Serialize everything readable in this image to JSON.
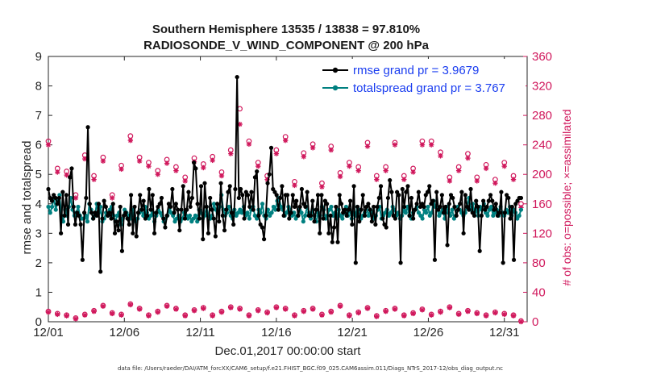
{
  "chart_data": {
    "type": "line",
    "title_line1": "Southern Hemisphere 13535 / 13838 = 97.810%",
    "title_line2": "RADIOSONDE_V_WIND_COMPONENT @ 200 hPa",
    "xlabel": "Dec.01,2017 00:00:00 start",
    "ylabel_left": "rmse and totalspread",
    "ylabel_right": "# of obs: o=possible; ×=assimilated",
    "footnote": "data file: /Users/raeder/DAI/ATM_forcXX/CAM6_setup/f.e21.FHIST_BGC.f09_025.CAM6assim.011/Diags_NTrS_2017-12/obs_diag_output.nc",
    "xlim": [
      0,
      31.5
    ],
    "ylim_left": [
      0,
      9
    ],
    "ylim_right": [
      0,
      360
    ],
    "x_ticks": [
      0,
      5,
      10,
      15,
      20,
      25,
      30
    ],
    "x_tick_labels": [
      "12/01",
      "12/06",
      "12/11",
      "12/16",
      "12/21",
      "12/26",
      "12/31"
    ],
    "y_ticks_left": [
      "0",
      "1",
      "2",
      "3",
      "4",
      "5",
      "6",
      "7",
      "8",
      "9"
    ],
    "y_ticks_right": [
      "0",
      "40",
      "80",
      "120",
      "160",
      "200",
      "240",
      "280",
      "320",
      "360"
    ],
    "colors": {
      "rmse": "#000000",
      "spread": "#008080",
      "obs": "#d0185c",
      "legend_text": "#1a3df0"
    },
    "series": [
      {
        "name": "rmse grand pr = 3.9679",
        "key": "rmse",
        "values": [
          4.5,
          4.2,
          4.1,
          4.3,
          4.2,
          4.0,
          4.2,
          3.0,
          4.4,
          3.6,
          4.3,
          3.3,
          4.9,
          5.2,
          3.9,
          3.3,
          3.7,
          3.6,
          3.3,
          2.1,
          3.7,
          4.2,
          6.6,
          4.0,
          3.7,
          3.5,
          3.7,
          3.6,
          4.0,
          1.7,
          3.5,
          4.1,
          3.9,
          3.6,
          3.7,
          3.5,
          4.0,
          3.0,
          3.4,
          3.1,
          3.9,
          2.4,
          3.6,
          3.7,
          3.5,
          3.3,
          4.3,
          3.0,
          3.9,
          2.9,
          3.7,
          4.3,
          3.8,
          4.1,
          3.5,
          3.6,
          4.5,
          3.8,
          4.3,
          3.0,
          3.7,
          3.9,
          4.0,
          4.2,
          3.5,
          3.2,
          3.6,
          4.0,
          3.9,
          4.5,
          3.7,
          4.0,
          3.8,
          3.1,
          3.8,
          4.6,
          3.5,
          3.8,
          4.4,
          3.9,
          4.2,
          5.4,
          5.2,
          4.0,
          3.5,
          4.6,
          2.8,
          4.7,
          3.9,
          3.0,
          4.2,
          3.8,
          3.5,
          2.9,
          4.0,
          3.4,
          4.7,
          3.6,
          3.1,
          3.8,
          4.4,
          4.6,
          3.7,
          3.3,
          4.5,
          8.3,
          4.2,
          4.5,
          4.3,
          3.5,
          4.4,
          4.3,
          3.9,
          4.4,
          3.8,
          4.9,
          5.1,
          3.6,
          3.3,
          3.2,
          2.8,
          3.6,
          4.7,
          5.0,
          5.9,
          4.5,
          4.4,
          4.3,
          3.8,
          4.2,
          4.6,
          3.6,
          4.3,
          4.3,
          3.5,
          3.7,
          4.3,
          3.9,
          4.1,
          3.6,
          3.9,
          4.5,
          4.0,
          3.9,
          4.4,
          3.6,
          3.6,
          4.1,
          3.4,
          3.8,
          4.3,
          3.0,
          4.3,
          3.5,
          4.1,
          4.0,
          3.0,
          3.6,
          2.7,
          3.2,
          3.9,
          2.7,
          4.3,
          4.0,
          3.7,
          3.8,
          3.6,
          3.8,
          4.1,
          3.3,
          4.6,
          2.0,
          3.9,
          3.4,
          3.8,
          4.3,
          3.6,
          3.9,
          4.0,
          3.8,
          3.4,
          3.9,
          3.3,
          3.9,
          4.2,
          4.6,
          3.5,
          3.3,
          3.2,
          4.2,
          4.8,
          4.4,
          3.6,
          3.5,
          4.4,
          4.3,
          2.0,
          4.5,
          3.9,
          4.4,
          4.6,
          3.6,
          4.2,
          3.5,
          3.8,
          4.0,
          4.4,
          3.9,
          4.0,
          3.9,
          4.3,
          4.4,
          4.6,
          4.0,
          4.1,
          2.1,
          4.4,
          3.8,
          3.9,
          4.3,
          3.7,
          3.9,
          2.6,
          4.0,
          4.3,
          4.2,
          3.9,
          3.6,
          3.8,
          4.0,
          4.4,
          3.0,
          4.3,
          3.9,
          3.8,
          4.5,
          3.7,
          3.6,
          4.1,
          3.9,
          2.4,
          3.6,
          4.1,
          3.8,
          3.9,
          4.1,
          4.3,
          4.1,
          3.8,
          4.0,
          3.6,
          3.7,
          4.4,
          2.0,
          3.7,
          4.3,
          4.2,
          3.5,
          3.9,
          2.1,
          4.0,
          4.1,
          4.2,
          4.2
        ]
      },
      {
        "name": "totalspread grand pr = 3.767",
        "key": "spread",
        "values": [
          3.9,
          3.7,
          3.9,
          4.2,
          3.8,
          4.1,
          4.3,
          3.6,
          3.4,
          3.8,
          3.6,
          3.9,
          4.2,
          3.8,
          3.6,
          3.7,
          3.9,
          3.6,
          3.5,
          3.5,
          3.6,
          3.4,
          4.0,
          3.8,
          3.5,
          3.6,
          4.0,
          3.7,
          3.9,
          3.4,
          3.5,
          3.7,
          3.6,
          3.8,
          3.9,
          3.6,
          3.4,
          3.6,
          3.7,
          3.3,
          3.5,
          3.8,
          3.7,
          3.6,
          3.5,
          3.8,
          3.6,
          3.4,
          3.5,
          3.7,
          3.8,
          3.6,
          3.9,
          3.7,
          3.5,
          3.6,
          3.7,
          3.4,
          3.6,
          3.8,
          3.7,
          3.6,
          3.4,
          3.5,
          3.6,
          3.8,
          3.7,
          3.6,
          3.4,
          3.5,
          3.6,
          3.4,
          3.5,
          3.7,
          3.6,
          3.5,
          3.6,
          3.4,
          3.5,
          3.6,
          3.4,
          3.8,
          3.7,
          3.5,
          3.6,
          3.9,
          3.6,
          3.5,
          3.6,
          4.0,
          3.8,
          3.7,
          3.9,
          4.3,
          3.8,
          3.6,
          3.7,
          3.9,
          3.6,
          3.5,
          3.8,
          3.6,
          3.7,
          3.8,
          3.7,
          3.9,
          3.6,
          3.7,
          3.5,
          3.8,
          3.9,
          3.6,
          3.5,
          3.8,
          3.7,
          4.0,
          3.6,
          3.5,
          3.8,
          3.6,
          3.7,
          3.9,
          3.8,
          4.1,
          4.2,
          3.9,
          3.8,
          3.6,
          3.7,
          3.9,
          3.8,
          3.6,
          3.7,
          3.5,
          3.6,
          3.8,
          3.7,
          3.4,
          3.6,
          3.9,
          3.7,
          3.5,
          3.8,
          3.6,
          3.4,
          3.7,
          3.6,
          3.9,
          3.8,
          3.5,
          3.6,
          3.8,
          3.9,
          3.6,
          3.7,
          3.5,
          3.8,
          3.6,
          3.5,
          3.7,
          3.9,
          3.6,
          3.8,
          3.5,
          3.7,
          3.6,
          3.9,
          3.8,
          3.5,
          3.6,
          3.7,
          3.9,
          3.6,
          3.8,
          3.7,
          3.5,
          3.6,
          3.8,
          3.9,
          3.5,
          3.6,
          3.7,
          3.8,
          3.6,
          3.7,
          3.9,
          3.8,
          3.6,
          3.7,
          3.5,
          3.6,
          3.8,
          3.7,
          3.9,
          3.6,
          3.5,
          3.7,
          3.8,
          3.9,
          3.7,
          3.6,
          3.5,
          3.8,
          3.7,
          3.9,
          3.6,
          3.7,
          4.1,
          3.9,
          3.8,
          3.6,
          3.7,
          3.8,
          3.5,
          3.9,
          3.7,
          3.6,
          3.8,
          3.5,
          3.6,
          3.9,
          3.8,
          3.7,
          3.6,
          3.7,
          3.9,
          4.2,
          3.8,
          4.0,
          3.7,
          3.8,
          3.6,
          3.9,
          3.8,
          4.0,
          3.7,
          3.6,
          3.8,
          3.9,
          3.6,
          3.7,
          3.8,
          3.6,
          3.9,
          3.7,
          3.6,
          3.8,
          3.7,
          3.9,
          3.6,
          3.8,
          3.7,
          3.5,
          3.6,
          3.8
        ]
      }
    ],
    "obs_possible_high": [
      [
        0,
        245
      ],
      [
        0.6,
        208
      ],
      [
        1.2,
        204
      ],
      [
        1.8,
        172
      ],
      [
        2.4,
        226
      ],
      [
        3,
        198
      ],
      [
        3.6,
        223
      ],
      [
        4.2,
        172
      ],
      [
        4.8,
        212
      ],
      [
        5.4,
        252
      ],
      [
        6,
        223
      ],
      [
        6.6,
        216
      ],
      [
        7.2,
        205
      ],
      [
        7.8,
        220
      ],
      [
        8.4,
        210
      ],
      [
        9,
        196
      ],
      [
        9.6,
        222
      ],
      [
        10.2,
        214
      ],
      [
        10.8,
        224
      ],
      [
        11.4,
        203
      ],
      [
        12,
        233
      ],
      [
        12.6,
        289
      ],
      [
        13.2,
        245
      ],
      [
        13.8,
        216
      ],
      [
        14.4,
        198
      ],
      [
        15,
        233
      ],
      [
        15.6,
        251
      ],
      [
        16.2,
        190
      ],
      [
        16.8,
        229
      ],
      [
        17.4,
        241
      ],
      [
        18,
        188
      ],
      [
        18.6,
        238
      ],
      [
        19.2,
        202
      ],
      [
        19.8,
        216
      ],
      [
        20.4,
        210
      ],
      [
        21,
        243
      ],
      [
        21.6,
        198
      ],
      [
        22.2,
        210
      ],
      [
        22.8,
        243
      ],
      [
        23.4,
        198
      ],
      [
        24,
        208
      ],
      [
        24.6,
        245
      ],
      [
        25.2,
        245
      ],
      [
        25.8,
        230
      ],
      [
        26.4,
        196
      ],
      [
        27,
        210
      ],
      [
        27.6,
        228
      ],
      [
        28.2,
        196
      ],
      [
        28.8,
        213
      ],
      [
        29.4,
        193
      ],
      [
        30,
        216
      ],
      [
        30.6,
        198
      ],
      [
        31.1,
        160
      ]
    ],
    "obs_assimilated_high": [
      [
        0,
        240
      ],
      [
        0.6,
        203
      ],
      [
        1.2,
        199
      ],
      [
        1.8,
        168
      ],
      [
        2.4,
        221
      ],
      [
        3,
        193
      ],
      [
        3.6,
        218
      ],
      [
        4.2,
        168
      ],
      [
        4.8,
        207
      ],
      [
        5.4,
        246
      ],
      [
        6,
        218
      ],
      [
        6.6,
        211
      ],
      [
        7.2,
        200
      ],
      [
        7.8,
        215
      ],
      [
        8.4,
        205
      ],
      [
        9,
        191
      ],
      [
        9.6,
        217
      ],
      [
        10.2,
        209
      ],
      [
        10.8,
        219
      ],
      [
        11.4,
        198
      ],
      [
        12,
        228
      ],
      [
        12.6,
        268
      ],
      [
        13.2,
        241
      ],
      [
        13.8,
        211
      ],
      [
        14.4,
        193
      ],
      [
        15,
        228
      ],
      [
        15.6,
        246
      ],
      [
        16.2,
        185
      ],
      [
        16.8,
        224
      ],
      [
        17.4,
        236
      ],
      [
        18,
        183
      ],
      [
        18.6,
        233
      ],
      [
        19.2,
        197
      ],
      [
        19.8,
        211
      ],
      [
        20.4,
        205
      ],
      [
        21,
        238
      ],
      [
        21.6,
        193
      ],
      [
        22.2,
        205
      ],
      [
        22.8,
        240
      ],
      [
        23.4,
        193
      ],
      [
        24,
        203
      ],
      [
        24.6,
        240
      ],
      [
        25.2,
        240
      ],
      [
        25.8,
        225
      ],
      [
        26.4,
        191
      ],
      [
        27,
        205
      ],
      [
        27.6,
        222
      ],
      [
        28.2,
        191
      ],
      [
        28.8,
        208
      ],
      [
        29.4,
        188
      ],
      [
        30,
        211
      ],
      [
        30.6,
        193
      ],
      [
        31.1,
        155
      ]
    ],
    "obs_possible_low": [
      [
        0,
        14
      ],
      [
        0.6,
        11
      ],
      [
        1.2,
        9
      ],
      [
        1.8,
        5
      ],
      [
        2.4,
        10
      ],
      [
        3,
        15
      ],
      [
        3.6,
        22
      ],
      [
        4.2,
        12
      ],
      [
        4.8,
        10
      ],
      [
        5.4,
        24
      ],
      [
        6,
        18
      ],
      [
        6.6,
        9
      ],
      [
        7.2,
        14
      ],
      [
        7.8,
        22
      ],
      [
        8.4,
        18
      ],
      [
        9,
        9
      ],
      [
        9.6,
        16
      ],
      [
        10.2,
        19
      ],
      [
        10.8,
        9
      ],
      [
        11.4,
        14
      ],
      [
        12,
        20
      ],
      [
        12.6,
        18
      ],
      [
        13.2,
        9
      ],
      [
        13.8,
        16
      ],
      [
        14.4,
        13
      ],
      [
        15,
        20
      ],
      [
        15.6,
        18
      ],
      [
        16.2,
        9
      ],
      [
        16.8,
        15
      ],
      [
        17.4,
        18
      ],
      [
        18,
        10
      ],
      [
        18.6,
        14
      ],
      [
        19.2,
        22
      ],
      [
        19.8,
        9
      ],
      [
        20.4,
        13
      ],
      [
        21,
        19
      ],
      [
        21.6,
        8
      ],
      [
        22.2,
        15
      ],
      [
        22.8,
        18
      ],
      [
        23.4,
        9
      ],
      [
        24,
        12
      ],
      [
        24.6,
        17
      ],
      [
        25.2,
        10
      ],
      [
        25.8,
        14
      ],
      [
        26.4,
        20
      ],
      [
        27,
        11
      ],
      [
        27.6,
        15
      ],
      [
        28.2,
        12
      ],
      [
        28.8,
        9
      ],
      [
        29.4,
        13
      ],
      [
        30,
        11
      ],
      [
        30.6,
        9
      ],
      [
        31.1,
        1
      ]
    ],
    "obs_assimilated_low": [
      [
        0,
        13
      ],
      [
        0.6,
        10
      ],
      [
        1.2,
        8
      ],
      [
        1.8,
        4
      ],
      [
        2.4,
        9
      ],
      [
        3,
        14
      ],
      [
        3.6,
        21
      ],
      [
        4.2,
        11
      ],
      [
        4.8,
        9
      ],
      [
        5.4,
        23
      ],
      [
        6,
        17
      ],
      [
        6.6,
        8
      ],
      [
        7.2,
        13
      ],
      [
        7.8,
        21
      ],
      [
        8.4,
        17
      ],
      [
        9,
        8
      ],
      [
        9.6,
        15
      ],
      [
        10.2,
        18
      ],
      [
        10.8,
        8
      ],
      [
        11.4,
        13
      ],
      [
        12,
        19
      ],
      [
        12.6,
        17
      ],
      [
        13.2,
        8
      ],
      [
        13.8,
        15
      ],
      [
        14.4,
        12
      ],
      [
        15,
        19
      ],
      [
        15.6,
        17
      ],
      [
        16.2,
        8
      ],
      [
        16.8,
        14
      ],
      [
        17.4,
        17
      ],
      [
        18,
        9
      ],
      [
        18.6,
        13
      ],
      [
        19.2,
        21
      ],
      [
        19.8,
        8
      ],
      [
        20.4,
        12
      ],
      [
        21,
        18
      ],
      [
        21.6,
        7
      ],
      [
        22.2,
        14
      ],
      [
        22.8,
        17
      ],
      [
        23.4,
        8
      ],
      [
        24,
        11
      ],
      [
        24.6,
        16
      ],
      [
        25.2,
        9
      ],
      [
        25.8,
        13
      ],
      [
        26.4,
        19
      ],
      [
        27,
        10
      ],
      [
        27.6,
        14
      ],
      [
        28.2,
        11
      ],
      [
        28.8,
        8
      ],
      [
        29.4,
        12
      ],
      [
        30,
        10
      ],
      [
        30.6,
        8
      ],
      [
        31.1,
        0
      ]
    ]
  }
}
